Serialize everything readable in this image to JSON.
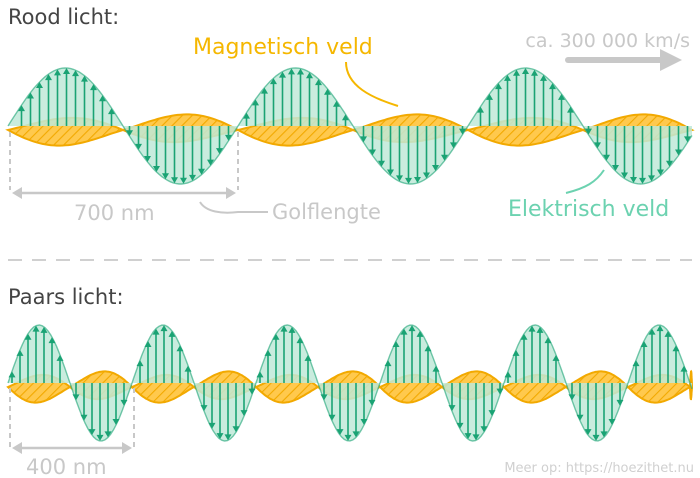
{
  "colors": {
    "electric": "#1aa374",
    "electric_fill": "#bfe9d8",
    "magnetic": "#f2a900",
    "magnetic_fill": "#ffc94d",
    "gray": "#c8c8c8",
    "text": "#444444"
  },
  "red": {
    "title": "Rood licht:",
    "wavelength_label": "700 nm",
    "wavelength_caption": "Golflengte",
    "magnetic_label": "Magnetisch veld",
    "electric_label": "Elektrisch veld",
    "speed_label": "ca. 300 000 km/s"
  },
  "violet": {
    "title": "Paars licht:",
    "wavelength_label": "400 nm"
  },
  "footer": {
    "source": "Meer op: https://hoezithet.nu"
  },
  "icons": [
    "arrow-right-icon"
  ]
}
